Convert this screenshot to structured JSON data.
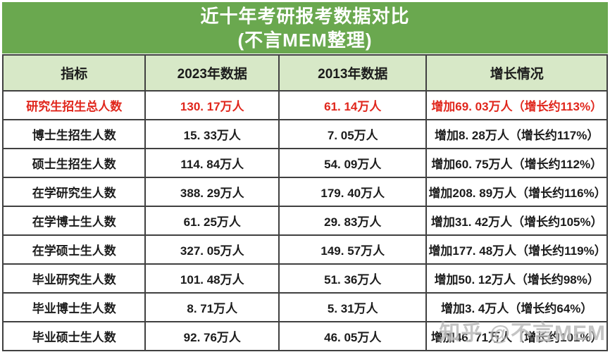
{
  "title": {
    "line1": "近十年考研报考数据对比",
    "line2": "(不言MEM整理)"
  },
  "watermark": "知乎 @不言MEM",
  "colors": {
    "title_background_green": "#6aa84f",
    "column_header_green": "#d7e8c7",
    "highlight_red": "#e0261c",
    "border_dark": "#404040",
    "text_black": "#1b1b1b",
    "title_text_white": "#ffffff",
    "watermark_gray": "#949494"
  },
  "table": {
    "columns": [
      "指标",
      "2023年数据",
      "2013年数据",
      "增长情况"
    ],
    "rows": [
      {
        "indicator": "研究生招生总人数",
        "y2023": "130. 17万人",
        "y2013": "61. 14万人",
        "growth": "增加69. 03万人（增长约113%）",
        "highlight": true
      },
      {
        "indicator": "博士生招生人数",
        "y2023": "15. 33万人",
        "y2013": "7. 05万人",
        "growth": "增加8. 28万人（增长约117%）",
        "highlight": false
      },
      {
        "indicator": "硕士生招生人数",
        "y2023": "114. 84万人",
        "y2013": "54. 09万人",
        "growth": "增加60. 75万人（增长约112%）",
        "highlight": false
      },
      {
        "indicator": "在学研究生人数",
        "y2023": "388. 29万人",
        "y2013": "179. 40万人",
        "growth": "增加208. 89万人（增长约116%）",
        "highlight": false
      },
      {
        "indicator": "在学博士生人数",
        "y2023": "61. 25万人",
        "y2013": "29. 83万人",
        "growth": "增加31. 42万人（增长约105%）",
        "highlight": false
      },
      {
        "indicator": "在学硕士生人数",
        "y2023": "327. 05万人",
        "y2013": "149. 57万人",
        "growth": "增加177. 48万人（增长约119%）",
        "highlight": false
      },
      {
        "indicator": "毕业研究生人数",
        "y2023": "101. 48万人",
        "y2013": "51. 36万人",
        "growth": "增加50. 12万人（增长约98%）",
        "highlight": false
      },
      {
        "indicator": "毕业博士生人数",
        "y2023": "8. 71万人",
        "y2013": "5. 31万人",
        "growth": "增加3. 4万人（增长约64%）",
        "highlight": false
      },
      {
        "indicator": "毕业硕士生人数",
        "y2023": "92. 76万人",
        "y2013": "46. 05万人",
        "growth": "增加46. 71万人（增长约101%）",
        "highlight": false
      }
    ]
  },
  "chart_data": {
    "type": "table",
    "title": "近十年考研报考数据对比(不言MEM整理)",
    "columns": [
      "指标",
      "2023年数据",
      "2013年数据",
      "增长情况"
    ],
    "categories": [
      "研究生招生总人数",
      "博士生招生人数",
      "硕士生招生人数",
      "在学研究生人数",
      "在学博士生人数",
      "在学硕士生人数",
      "毕业研究生人数",
      "毕业博士生人数",
      "毕业硕士生人数"
    ],
    "unit": "万人",
    "series": [
      {
        "name": "2023年数据(万人)",
        "values": [
          130.17,
          15.33,
          114.84,
          388.29,
          61.25,
          327.05,
          101.48,
          8.71,
          92.76
        ]
      },
      {
        "name": "2013年数据(万人)",
        "values": [
          61.14,
          7.05,
          54.09,
          179.4,
          29.83,
          149.57,
          51.36,
          5.31,
          46.05
        ]
      },
      {
        "name": "增加(万人)",
        "values": [
          69.03,
          8.28,
          60.75,
          208.89,
          31.42,
          177.48,
          50.12,
          3.4,
          46.71
        ]
      },
      {
        "name": "增长约(%)",
        "values": [
          113,
          117,
          112,
          116,
          105,
          119,
          98,
          64,
          101
        ]
      }
    ]
  }
}
